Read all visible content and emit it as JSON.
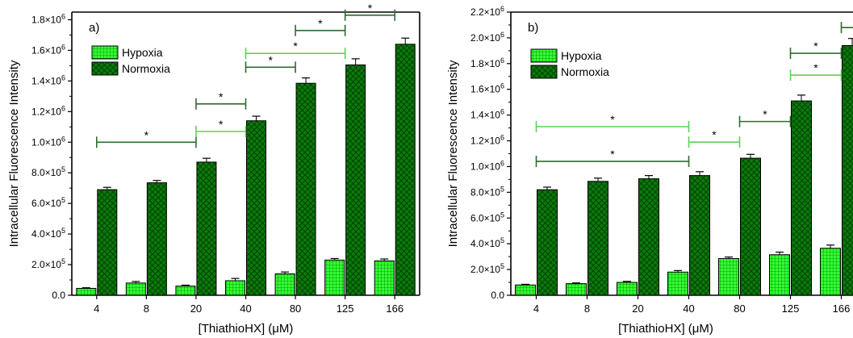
{
  "colors": {
    "hypoxia_fill": "#33ff33",
    "hypoxia_grid": "#007a00",
    "normoxia_fill": "#0b7a0b",
    "normoxia_hatch": "#003d00",
    "bracket_dark": "#2e6b2e",
    "bracket_light": "#5fd05f"
  },
  "chart_data": [
    {
      "type": "bar",
      "panel_label": "a)",
      "xlabel": "[ThiathioHX] (μM)",
      "ylabel": "Intracellular Fluorescence Intensity",
      "categories": [
        "4",
        "8",
        "20",
        "40",
        "80",
        "125",
        "166"
      ],
      "ylim": [
        0,
        1850000
      ],
      "y_ticks": [
        0,
        200000,
        400000,
        600000,
        800000,
        1000000,
        1200000,
        1400000,
        1600000,
        1800000
      ],
      "y_tick_labels": [
        "0.0",
        "2.0×10⁵",
        "4.0×10⁵",
        "6.0×10⁵",
        "8.0×10⁵",
        "1.0×10⁶",
        "1.2×10⁶",
        "1.4×10⁶",
        "1.6×10⁶",
        "1.8×10⁶"
      ],
      "legend_position": "top-left",
      "series": [
        {
          "name": "Hypoxia",
          "values": [
            45000,
            80000,
            60000,
            95000,
            140000,
            230000,
            225000
          ],
          "errors": [
            4000,
            10000,
            6000,
            15000,
            12000,
            10000,
            12000
          ]
        },
        {
          "name": "Normoxia",
          "values": [
            690000,
            735000,
            870000,
            1140000,
            1385000,
            1505000,
            1640000
          ],
          "errors": [
            15000,
            15000,
            25000,
            30000,
            35000,
            40000,
            40000
          ]
        }
      ],
      "significance": [
        {
          "from": 0,
          "to": 2,
          "y": 1000000,
          "label": "*",
          "style": "dark"
        },
        {
          "from": 2,
          "to": 3,
          "y": 1070000,
          "label": "*",
          "style": "light"
        },
        {
          "from": 2,
          "to": 3,
          "y": 1250000,
          "label": "*",
          "style": "dark"
        },
        {
          "from": 3,
          "to": 4,
          "y": 1490000,
          "label": "*",
          "style": "dark"
        },
        {
          "from": 3,
          "to": 5,
          "y": 1580000,
          "label": "*",
          "style": "light"
        },
        {
          "from": 4,
          "to": 5,
          "y": 1730000,
          "label": "*",
          "style": "dark"
        },
        {
          "from": 5,
          "to": 6,
          "y": 1830000,
          "label": "*",
          "style": "dark"
        }
      ]
    },
    {
      "type": "bar",
      "panel_label": "b)",
      "xlabel": "[ThiathioHX] (μM)",
      "ylabel": "Intracellular Fluorescence Intensity",
      "categories": [
        "4",
        "8",
        "20",
        "40",
        "80",
        "125",
        "166"
      ],
      "ylim": [
        0,
        2200000
      ],
      "y_ticks": [
        0,
        200000,
        400000,
        600000,
        800000,
        1000000,
        1200000,
        1400000,
        1600000,
        1800000,
        2000000,
        2200000
      ],
      "y_tick_labels": [
        "0.0",
        "2.0×10⁵",
        "4.0×10⁵",
        "6.0×10⁵",
        "8.0×10⁵",
        "1.0×10⁶",
        "1.2×10⁶",
        "1.4×10⁶",
        "1.6×10⁶",
        "1.8×10⁶",
        "2.0×10⁶",
        "2.2×10⁶"
      ],
      "legend_position": "top-left",
      "series": [
        {
          "name": "Hypoxia",
          "values": [
            80000,
            90000,
            100000,
            180000,
            285000,
            315000,
            365000
          ],
          "errors": [
            5000,
            6000,
            8000,
            12000,
            12000,
            20000,
            25000
          ]
        },
        {
          "name": "Normoxia",
          "values": [
            820000,
            885000,
            905000,
            930000,
            1065000,
            1510000,
            1940000
          ],
          "errors": [
            20000,
            25000,
            25000,
            30000,
            30000,
            45000,
            55000
          ]
        }
      ],
      "significance": [
        {
          "from": 0,
          "to": 3,
          "y": 1310000,
          "label": "*",
          "style": "light"
        },
        {
          "from": 0,
          "to": 3,
          "y": 1040000,
          "label": "*",
          "style": "dark"
        },
        {
          "from": 3,
          "to": 4,
          "y": 1190000,
          "label": "*",
          "style": "light"
        },
        {
          "from": 4,
          "to": 5,
          "y": 1350000,
          "label": "*",
          "style": "dark"
        },
        {
          "from": 5,
          "to": 6,
          "y": 1710000,
          "label": "*",
          "style": "light"
        },
        {
          "from": 5,
          "to": 6,
          "y": 1880000,
          "label": "*",
          "style": "dark"
        },
        {
          "from": 6,
          "to": 7,
          "y": 2080000,
          "label": "*",
          "style": "dark"
        }
      ]
    }
  ]
}
